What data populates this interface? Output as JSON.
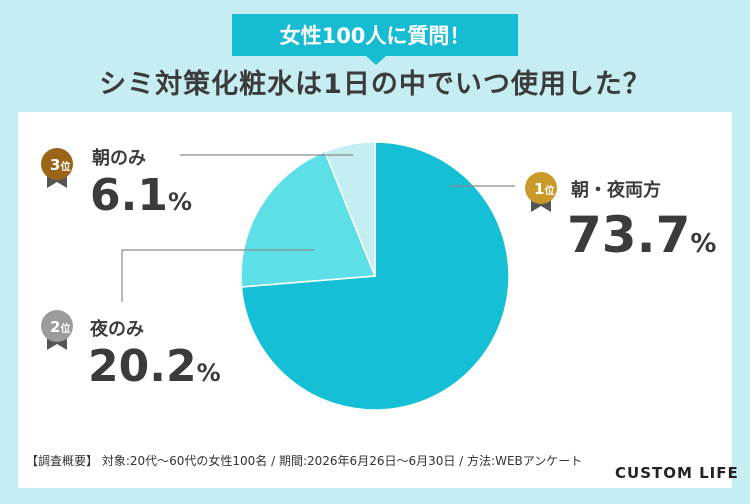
{
  "header": {
    "badge": "女性100人に質問！",
    "title": "シミ対策化粧水は1日の中でいつ使用した？"
  },
  "chart_data": {
    "type": "pie",
    "unit": "%",
    "slices": [
      {
        "rank": "1",
        "rank_suffix": "位",
        "label": "朝・夜両方",
        "value": 73.7,
        "color": "#15bfd6"
      },
      {
        "rank": "2",
        "rank_suffix": "位",
        "label": "夜のみ",
        "value": 20.2,
        "color": "#5ddfe7"
      },
      {
        "rank": "3",
        "rank_suffix": "位",
        "label": "朝のみ",
        "value": 6.1,
        "color": "#c4eef2"
      }
    ],
    "badge_colors": {
      "1": "#c99a2a",
      "2": "#9c9c9c",
      "3": "#9a6517"
    }
  },
  "footnote": "【調査概要】 対象:20代～60代の女性100名 / 期間:2026年6月26日～6月30日 / 方法:WEBアンケート",
  "brand": "CUSTOM LIFE"
}
